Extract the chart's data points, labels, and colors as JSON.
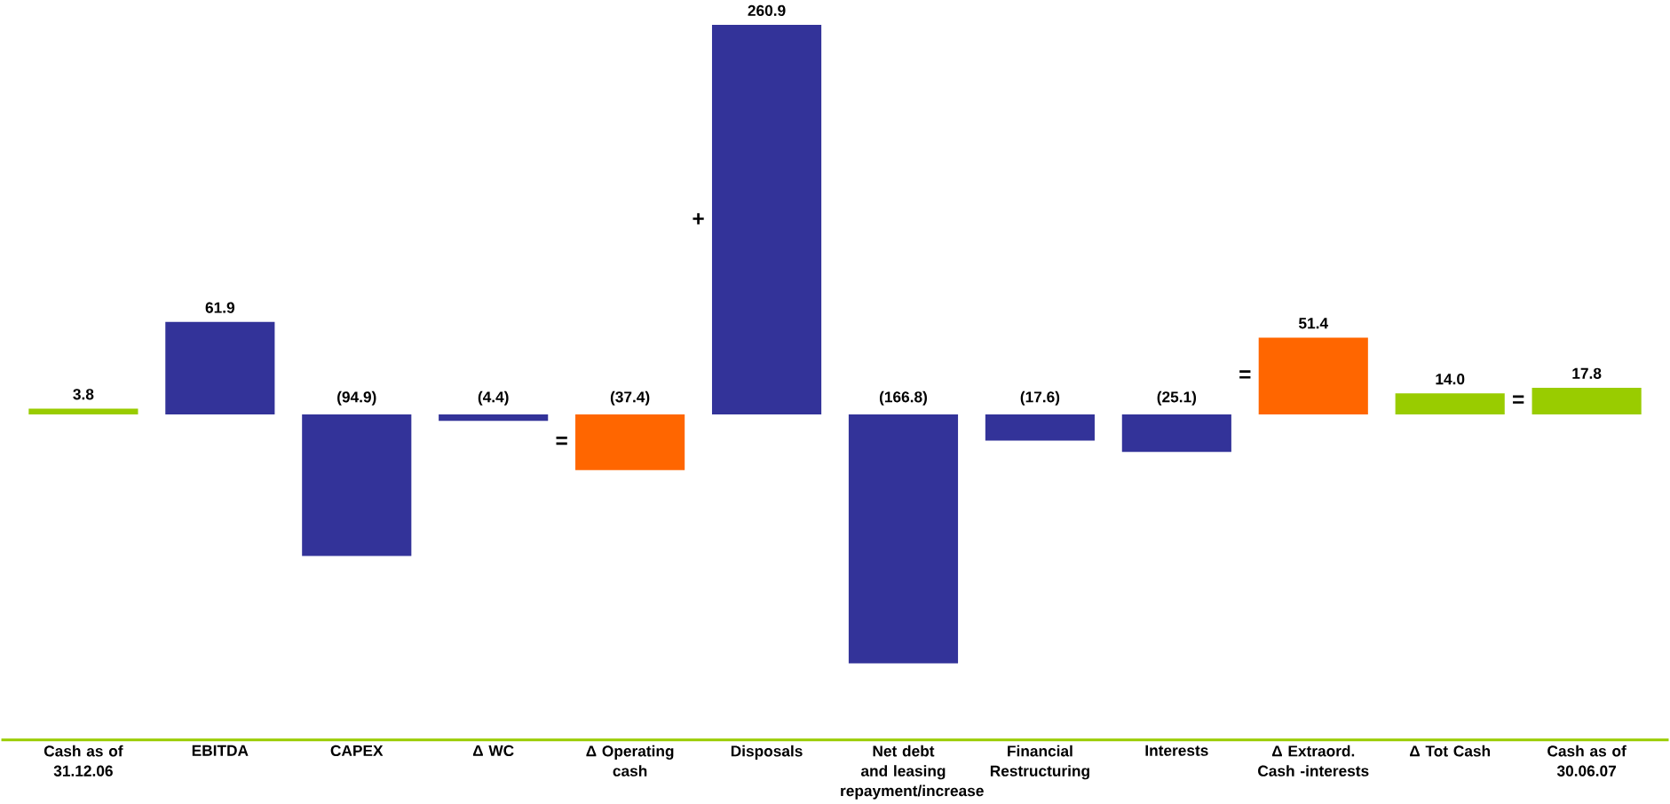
{
  "chart_data": {
    "type": "bar",
    "categories": [
      "Cash as of 31.12.06",
      "EBITDA",
      "CAPEX",
      "Δ WC",
      "Δ Operating cash",
      "Disposals",
      "Net debt and leasing repayment/increase",
      "Financial Restructuring",
      "Interests",
      "Δ Extraord. Cash -interests",
      "Δ Tot Cash",
      "Cash as of 30.06.07"
    ],
    "values": [
      3.8,
      61.9,
      -94.9,
      -4.4,
      -37.4,
      260.9,
      -166.8,
      -17.6,
      -25.1,
      51.4,
      14.0,
      17.8
    ],
    "colors": [
      "#99cc00",
      "#333399",
      "#333399",
      "#333399",
      "#ff6600",
      "#333399",
      "#333399",
      "#333399",
      "#333399",
      "#ff6600",
      "#99cc00",
      "#99cc00"
    ],
    "value_labels": [
      "3.8",
      "61.9",
      "(94.9)",
      "(4.4)",
      "(37.4)",
      "260.9",
      "(166.8)",
      "(17.6)",
      "(25.1)",
      "51.4",
      "14.0",
      "17.8"
    ],
    "annotations": [
      "=",
      "+",
      "=",
      "="
    ]
  }
}
